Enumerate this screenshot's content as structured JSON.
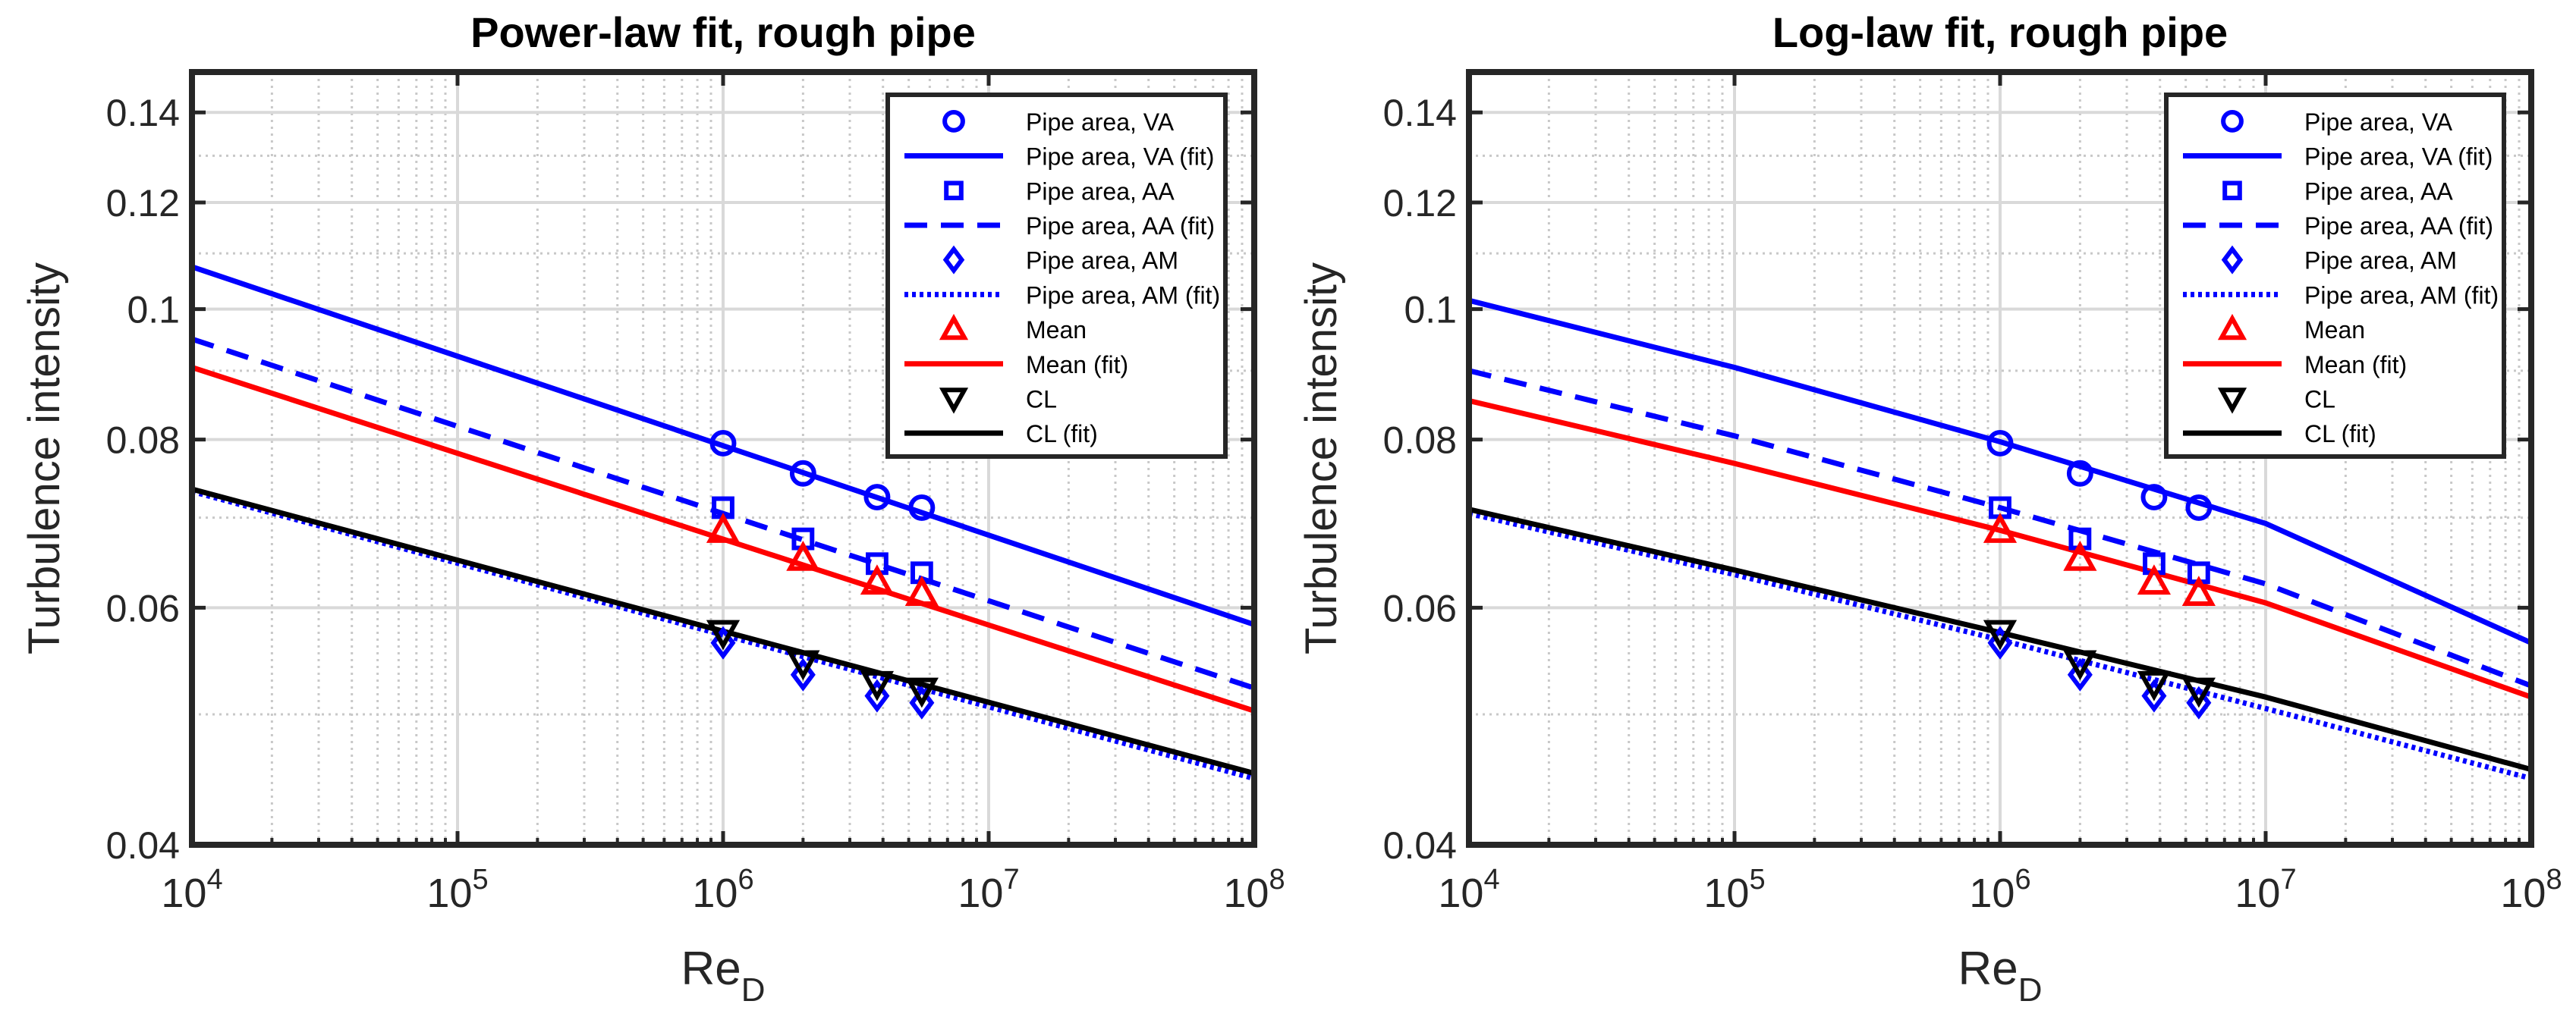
{
  "chart_data": [
    {
      "type": "line",
      "title": "Power-law fit, rough pipe",
      "xlabel": "Re",
      "xlabel_sub": "D",
      "ylabel": "Turbulence intensity",
      "xscale": "log",
      "yscale": "log",
      "xlim": [
        10000,
        100000000
      ],
      "ylim": [
        0.04,
        0.15
      ],
      "grid": true,
      "minor_grid": true,
      "legend_position": "top-right",
      "x_ticks": [
        {
          "value": 10000,
          "base": "10",
          "exp": "4"
        },
        {
          "value": 100000,
          "base": "10",
          "exp": "5"
        },
        {
          "value": 1000000,
          "base": "10",
          "exp": "6"
        },
        {
          "value": 10000000,
          "base": "10",
          "exp": "7"
        },
        {
          "value": 100000000,
          "base": "10",
          "exp": "8"
        }
      ],
      "y_ticks": [
        {
          "value": 0.04,
          "label": "0.04"
        },
        {
          "value": 0.06,
          "label": "0.06"
        },
        {
          "value": 0.08,
          "label": "0.08"
        },
        {
          "value": 0.1,
          "label": "0.1"
        },
        {
          "value": 0.12,
          "label": "0.12"
        },
        {
          "value": 0.14,
          "label": "0.14"
        }
      ],
      "series": [
        {
          "name": "Pipe area, VA",
          "kind": "marker",
          "marker": "circle",
          "color": "#0000ff",
          "x": [
            1000000,
            2000000,
            3800000,
            5600000
          ],
          "y": [
            0.0795,
            0.0755,
            0.0725,
            0.0712
          ]
        },
        {
          "name": "Pipe area, VA (fit)",
          "kind": "line",
          "dash": "solid",
          "color": "#0000ff",
          "x": [
            10000,
            100000000
          ],
          "y": [
            0.1075,
            0.0583
          ]
        },
        {
          "name": "Pipe area, AA",
          "kind": "marker",
          "marker": "square",
          "color": "#0000ff",
          "x": [
            1000000,
            2000000,
            3800000,
            5600000
          ],
          "y": [
            0.0712,
            0.0675,
            0.0647,
            0.0637
          ]
        },
        {
          "name": "Pipe area, AA (fit)",
          "kind": "line",
          "dash": "dashed",
          "color": "#0000ff",
          "x": [
            10000,
            100000000
          ],
          "y": [
            0.095,
            0.0523
          ]
        },
        {
          "name": "Pipe area, AM",
          "kind": "marker",
          "marker": "diamond",
          "color": "#0000ff",
          "x": [
            1000000,
            2000000,
            3800000,
            5600000
          ],
          "y": [
            0.0565,
            0.0535,
            0.0516,
            0.051
          ]
        },
        {
          "name": "Pipe area, AM (fit)",
          "kind": "line",
          "dash": "dotted",
          "color": "#0000ff",
          "x": [
            10000,
            100000000
          ],
          "y": [
            0.0732,
            0.0448
          ]
        },
        {
          "name": "Mean",
          "kind": "marker",
          "marker": "triangle-up",
          "color": "#ff0000",
          "x": [
            1000000,
            2000000,
            3800000,
            5600000
          ],
          "y": [
            0.0685,
            0.0653,
            0.0627,
            0.0615
          ]
        },
        {
          "name": "Mean (fit)",
          "kind": "line",
          "dash": "solid",
          "color": "#ff0000",
          "x": [
            10000,
            100000000
          ],
          "y": [
            0.0905,
            0.0503
          ]
        },
        {
          "name": "CL",
          "kind": "marker",
          "marker": "triangle-down",
          "color": "#000000",
          "x": [
            1000000,
            2000000,
            3800000,
            5600000
          ],
          "y": [
            0.0575,
            0.0546,
            0.0527,
            0.0521
          ]
        },
        {
          "name": "CL (fit)",
          "kind": "line",
          "dash": "solid",
          "color": "#000000",
          "x": [
            10000,
            100000000
          ],
          "y": [
            0.0735,
            0.0452
          ]
        }
      ]
    },
    {
      "type": "line",
      "title": "Log-law fit, rough pipe",
      "xlabel": "Re",
      "xlabel_sub": "D",
      "ylabel": "Turbulence intensity",
      "xscale": "log",
      "yscale": "log",
      "xlim": [
        10000,
        100000000
      ],
      "ylim": [
        0.04,
        0.15
      ],
      "grid": true,
      "minor_grid": true,
      "legend_position": "top-right",
      "x_ticks": [
        {
          "value": 10000,
          "base": "10",
          "exp": "4"
        },
        {
          "value": 100000,
          "base": "10",
          "exp": "5"
        },
        {
          "value": 1000000,
          "base": "10",
          "exp": "6"
        },
        {
          "value": 10000000,
          "base": "10",
          "exp": "7"
        },
        {
          "value": 100000000,
          "base": "10",
          "exp": "8"
        }
      ],
      "y_ticks": [
        {
          "value": 0.04,
          "label": "0.04"
        },
        {
          "value": 0.06,
          "label": "0.06"
        },
        {
          "value": 0.08,
          "label": "0.08"
        },
        {
          "value": 0.1,
          "label": "0.1"
        },
        {
          "value": 0.12,
          "label": "0.12"
        },
        {
          "value": 0.14,
          "label": "0.14"
        }
      ],
      "series": [
        {
          "name": "Pipe area, VA",
          "kind": "marker",
          "marker": "circle",
          "color": "#0000ff",
          "x": [
            1000000,
            2000000,
            3800000,
            5600000
          ],
          "y": [
            0.0795,
            0.0755,
            0.0725,
            0.0712
          ]
        },
        {
          "name": "Pipe area, VA (fit)",
          "kind": "line",
          "dash": "solid",
          "color": "#0000ff",
          "x": [
            10000,
            100000,
            1000000,
            10000000,
            100000000
          ],
          "y": [
            0.1015,
            0.0905,
            0.0797,
            0.0693,
            0.0565
          ]
        },
        {
          "name": "Pipe area, AA",
          "kind": "marker",
          "marker": "square",
          "color": "#0000ff",
          "x": [
            1000000,
            2000000,
            3800000,
            5600000
          ],
          "y": [
            0.0712,
            0.0675,
            0.0647,
            0.0637
          ]
        },
        {
          "name": "Pipe area, AA (fit)",
          "kind": "line",
          "dash": "dashed",
          "color": "#0000ff",
          "x": [
            10000,
            100000,
            1000000,
            10000000,
            100000000
          ],
          "y": [
            0.09,
            0.0805,
            0.0712,
            0.0625,
            0.0525
          ]
        },
        {
          "name": "Pipe area, AM",
          "kind": "marker",
          "marker": "diamond",
          "color": "#0000ff",
          "x": [
            1000000,
            2000000,
            3800000,
            5600000
          ],
          "y": [
            0.0565,
            0.0535,
            0.0516,
            0.051
          ]
        },
        {
          "name": "Pipe area, AM (fit)",
          "kind": "line",
          "dash": "dotted",
          "color": "#0000ff",
          "x": [
            10000,
            100000,
            1000000,
            10000000,
            100000000
          ],
          "y": [
            0.0705,
            0.0635,
            0.0568,
            0.0505,
            0.0448
          ]
        },
        {
          "name": "Mean",
          "kind": "marker",
          "marker": "triangle-up",
          "color": "#ff0000",
          "x": [
            1000000,
            2000000,
            3800000,
            5600000
          ],
          "y": [
            0.0685,
            0.0653,
            0.0627,
            0.0615
          ]
        },
        {
          "name": "Mean (fit)",
          "kind": "line",
          "dash": "solid",
          "color": "#ff0000",
          "x": [
            10000,
            100000,
            1000000,
            10000000,
            100000000
          ],
          "y": [
            0.0855,
            0.0768,
            0.0685,
            0.0605,
            0.0515
          ]
        },
        {
          "name": "CL",
          "kind": "marker",
          "marker": "triangle-down",
          "color": "#000000",
          "x": [
            1000000,
            2000000,
            3800000,
            5600000
          ],
          "y": [
            0.0575,
            0.0546,
            0.0527,
            0.0521
          ]
        },
        {
          "name": "CL (fit)",
          "kind": "line",
          "dash": "solid",
          "color": "#000000",
          "x": [
            10000,
            100000,
            1000000,
            10000000,
            100000000
          ],
          "y": [
            0.071,
            0.064,
            0.0575,
            0.0515,
            0.0455
          ]
        }
      ]
    }
  ]
}
